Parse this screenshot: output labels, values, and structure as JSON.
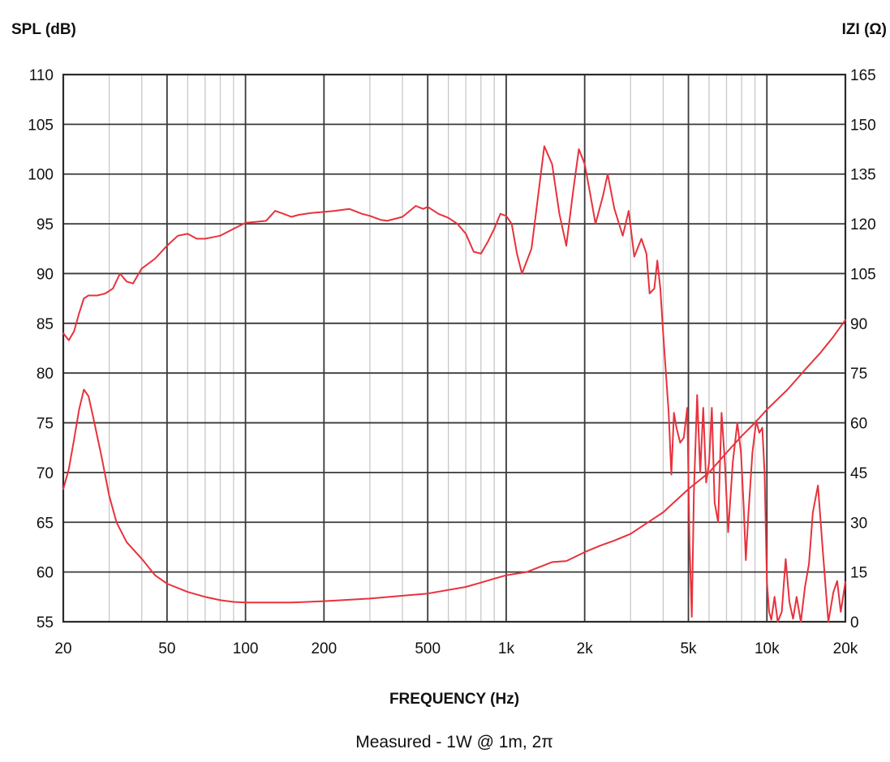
{
  "chart_data": {
    "type": "line",
    "title": "",
    "xlabel": "FREQUENCY (Hz)",
    "ylabel_left": "SPL (dB)",
    "ylabel_right": "IZI (Ω)",
    "caption": "Measured - 1W @ 1m, 2π",
    "x_scale": "log",
    "xlim": [
      20,
      20000
    ],
    "ylim_left": [
      55,
      110
    ],
    "ylim_right": [
      0,
      165
    ],
    "grid": true,
    "x_tick_values": [
      20,
      50,
      100,
      200,
      500,
      1000,
      2000,
      5000,
      10000,
      20000
    ],
    "x_tick_labels": [
      "20",
      "50",
      "100",
      "200",
      "500",
      "1k",
      "2k",
      "5k",
      "10k",
      "20k"
    ],
    "y_left_ticks": [
      "110",
      "105",
      "100",
      "95",
      "90",
      "85",
      "80",
      "75",
      "70",
      "65",
      "60",
      "55"
    ],
    "y_right_ticks": [
      "165",
      "150",
      "135",
      "120",
      "105",
      "90",
      "75",
      "60",
      "45",
      "30",
      "15",
      "0"
    ],
    "line_color": "#e8323c",
    "series": [
      {
        "axis": "left",
        "points": [
          [
            20,
            84
          ],
          [
            21,
            83.3
          ],
          [
            22,
            84.2
          ],
          [
            23,
            86
          ],
          [
            24,
            87.5
          ],
          [
            25,
            87.8
          ],
          [
            27,
            87.8
          ],
          [
            29,
            88
          ],
          [
            31,
            88.5
          ],
          [
            33,
            90
          ],
          [
            35,
            89.2
          ],
          [
            37,
            89
          ],
          [
            40,
            90.5
          ],
          [
            45,
            91.5
          ],
          [
            50,
            92.8
          ],
          [
            55,
            93.8
          ],
          [
            60,
            94
          ],
          [
            65,
            93.5
          ],
          [
            70,
            93.5
          ],
          [
            80,
            93.8
          ],
          [
            90,
            94.5
          ],
          [
            100,
            95.1
          ],
          [
            110,
            95.2
          ],
          [
            120,
            95.3
          ],
          [
            130,
            96.3
          ],
          [
            140,
            96
          ],
          [
            150,
            95.7
          ],
          [
            160,
            95.9
          ],
          [
            180,
            96.1
          ],
          [
            200,
            96.2
          ],
          [
            220,
            96.3
          ],
          [
            250,
            96.5
          ],
          [
            280,
            96
          ],
          [
            300,
            95.8
          ],
          [
            330,
            95.4
          ],
          [
            350,
            95.3
          ],
          [
            400,
            95.7
          ],
          [
            450,
            96.8
          ],
          [
            480,
            96.5
          ],
          [
            500,
            96.7
          ],
          [
            550,
            96
          ],
          [
            600,
            95.6
          ],
          [
            650,
            95
          ],
          [
            700,
            94
          ],
          [
            750,
            92.2
          ],
          [
            800,
            92
          ],
          [
            850,
            93.2
          ],
          [
            900,
            94.5
          ],
          [
            950,
            96
          ],
          [
            1000,
            95.8
          ],
          [
            1050,
            95
          ],
          [
            1100,
            92
          ],
          [
            1150,
            90
          ],
          [
            1250,
            92.5
          ],
          [
            1300,
            96
          ],
          [
            1400,
            102.8
          ],
          [
            1500,
            101
          ],
          [
            1600,
            96
          ],
          [
            1700,
            92.8
          ],
          [
            1800,
            98
          ],
          [
            1900,
            102.5
          ],
          [
            2000,
            101
          ],
          [
            2100,
            98
          ],
          [
            2200,
            95
          ],
          [
            2350,
            97.8
          ],
          [
            2450,
            100
          ],
          [
            2600,
            96.5
          ],
          [
            2800,
            93.8
          ],
          [
            2950,
            96.3
          ],
          [
            3100,
            91.7
          ],
          [
            3300,
            93.5
          ],
          [
            3450,
            92
          ],
          [
            3550,
            88
          ],
          [
            3700,
            88.5
          ],
          [
            3800,
            91.3
          ],
          [
            3900,
            88.5
          ],
          [
            4000,
            84
          ],
          [
            4200,
            76
          ],
          [
            4300,
            69.8
          ],
          [
            4400,
            76
          ],
          [
            4500,
            74.5
          ],
          [
            4650,
            73
          ],
          [
            4800,
            73.5
          ],
          [
            4950,
            76.5
          ],
          [
            5050,
            63
          ],
          [
            5150,
            55.5
          ],
          [
            5250,
            68
          ],
          [
            5400,
            77.8
          ],
          [
            5550,
            70
          ],
          [
            5700,
            76.5
          ],
          [
            5850,
            69
          ],
          [
            6000,
            71
          ],
          [
            6150,
            76.5
          ],
          [
            6300,
            67
          ],
          [
            6500,
            65
          ],
          [
            6700,
            76
          ],
          [
            6900,
            71
          ],
          [
            7100,
            64
          ],
          [
            7400,
            71
          ],
          [
            7700,
            75
          ],
          [
            7950,
            72
          ],
          [
            8150,
            66.5
          ],
          [
            8300,
            61.2
          ],
          [
            8500,
            66
          ],
          [
            8800,
            72
          ],
          [
            9100,
            75.2
          ],
          [
            9350,
            74
          ],
          [
            9600,
            74.5
          ],
          [
            9800,
            70
          ],
          [
            10000,
            59
          ],
          [
            10200,
            56
          ],
          [
            10400,
            55.2
          ],
          [
            10700,
            57.5
          ],
          [
            11000,
            55
          ],
          [
            11400,
            56
          ],
          [
            11800,
            61.3
          ],
          [
            12200,
            57
          ],
          [
            12600,
            55.3
          ],
          [
            13000,
            57.5
          ],
          [
            13500,
            55
          ],
          [
            14000,
            58.5
          ],
          [
            14500,
            60.8
          ],
          [
            15000,
            66
          ],
          [
            15700,
            68.7
          ],
          [
            16400,
            62
          ],
          [
            17200,
            55
          ],
          [
            18000,
            58
          ],
          [
            18600,
            59.1
          ],
          [
            19200,
            56
          ],
          [
            20000,
            59
          ]
        ]
      },
      {
        "axis": "right",
        "points": [
          [
            20,
            40
          ],
          [
            21,
            46
          ],
          [
            22,
            55
          ],
          [
            23,
            64
          ],
          [
            24,
            70
          ],
          [
            25,
            68
          ],
          [
            26,
            62
          ],
          [
            28,
            50
          ],
          [
            30,
            38
          ],
          [
            32,
            30
          ],
          [
            35,
            24
          ],
          [
            40,
            19
          ],
          [
            45,
            14
          ],
          [
            50,
            11.5
          ],
          [
            60,
            9
          ],
          [
            70,
            7.5
          ],
          [
            80,
            6.5
          ],
          [
            90,
            6
          ],
          [
            100,
            5.8
          ],
          [
            150,
            5.8
          ],
          [
            200,
            6.2
          ],
          [
            300,
            7
          ],
          [
            500,
            8.5
          ],
          [
            700,
            10.5
          ],
          [
            800,
            11.8
          ],
          [
            900,
            13
          ],
          [
            1000,
            14
          ],
          [
            1200,
            15
          ],
          [
            1500,
            18
          ],
          [
            1700,
            18.3
          ],
          [
            2000,
            21
          ],
          [
            2300,
            23
          ],
          [
            2600,
            24.5
          ],
          [
            3000,
            26.5
          ],
          [
            3500,
            30
          ],
          [
            4000,
            33
          ],
          [
            5000,
            40
          ],
          [
            6000,
            45
          ],
          [
            7000,
            51
          ],
          [
            8000,
            56
          ],
          [
            9000,
            60
          ],
          [
            10000,
            64
          ],
          [
            12000,
            70
          ],
          [
            14000,
            76
          ],
          [
            16000,
            81
          ],
          [
            18000,
            86
          ],
          [
            20000,
            91
          ]
        ]
      }
    ]
  }
}
